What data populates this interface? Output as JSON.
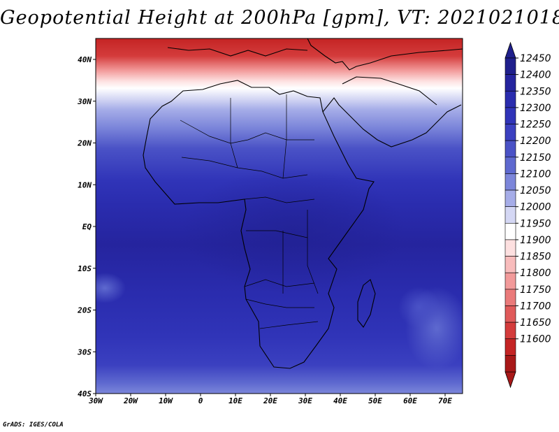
{
  "title": "Geopotential Height at 200hPa [gpm], VT: 2021021018",
  "credit": "GrADS: IGES/COLA",
  "x_ticks": [
    "30W",
    "20W",
    "10W",
    "0",
    "10E",
    "20E",
    "30E",
    "40E",
    "50E",
    "60E",
    "70E"
  ],
  "y_ticks": [
    "40N",
    "30N",
    "20N",
    "10N",
    "EQ",
    "10S",
    "20S",
    "30S",
    "40S"
  ],
  "colorbar": {
    "labels": [
      "12450",
      "12400",
      "12350",
      "12300",
      "12250",
      "12200",
      "12150",
      "12100",
      "12050",
      "12000",
      "11950",
      "11900",
      "11850",
      "11800",
      "11750",
      "11700",
      "11650",
      "11600"
    ],
    "colors": [
      "#1f1f8c",
      "#25249e",
      "#2a2cae",
      "#3034b8",
      "#3b40c0",
      "#4a52c6",
      "#5e69cf",
      "#7c86da",
      "#a6ade8",
      "#d4d7f4",
      "#ffffff",
      "#fde0e0",
      "#f8bcbc",
      "#f29a9a",
      "#ea7a7a",
      "#e05a5a",
      "#d43c3c",
      "#c42424",
      "#a81818"
    ],
    "arrow_top_color": "#1f1f8c",
    "arrow_bottom_color": "#a81818"
  },
  "map": {
    "region": "Africa",
    "lon_range": [
      -30,
      75
    ],
    "lat_range": [
      -40,
      45
    ]
  }
}
